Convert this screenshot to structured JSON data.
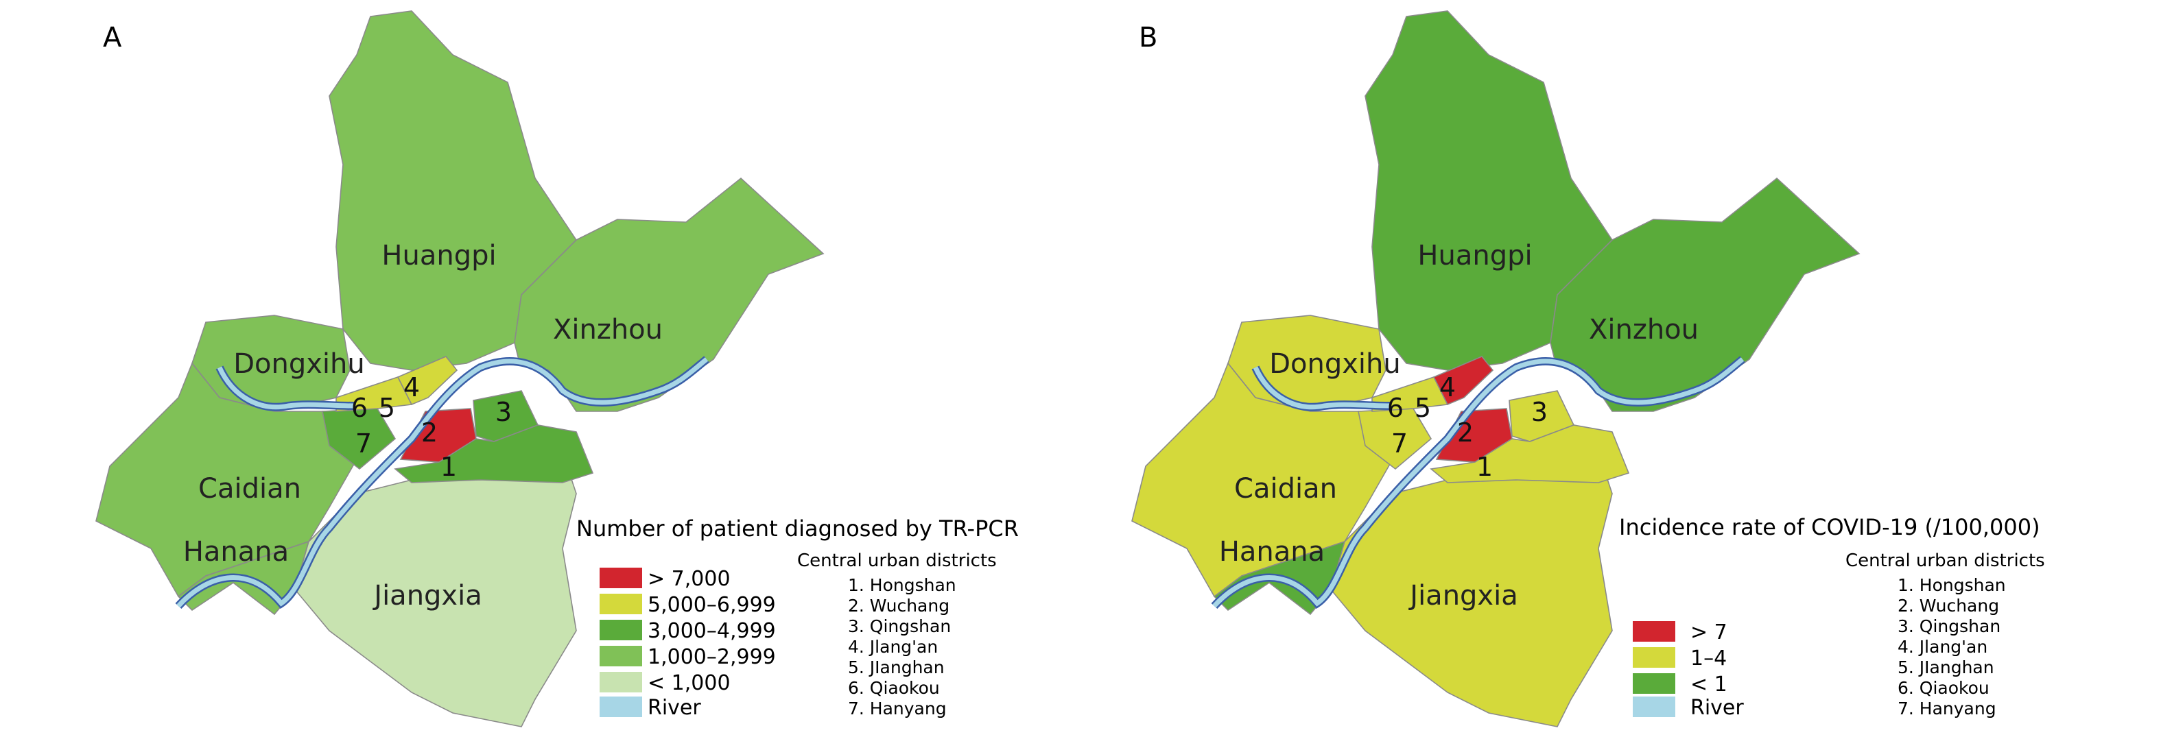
{
  "panels": [
    {
      "label": "A",
      "district_labels": [
        "Huangpi",
        "Xinzhou",
        "Dongxihu",
        "Caidian",
        "Hanana",
        "Jiangxia"
      ],
      "area_numbers": [
        "1",
        "2",
        "3",
        "4",
        "5",
        "6",
        "7"
      ],
      "legend": {
        "title": "Number of patient diagnosed by TR-PCR",
        "items": [
          {
            "label": "> 7,000",
            "color": "#d2252e"
          },
          {
            "label": "5,000–6,999",
            "color": "#d4d93b"
          },
          {
            "label": "3,000–4,999",
            "color": "#5aab3a"
          },
          {
            "label": "1,000–2,999",
            "color": "#80c157"
          },
          {
            "label": "< 1,000",
            "color": "#c8e3b0"
          },
          {
            "label": "River",
            "color": "#a7d6e6"
          }
        ]
      },
      "central": {
        "title": "Central urban districts",
        "items": [
          "1. Hongshan",
          "2. Wuchang",
          "3. Qingshan",
          "4. Jlang'an",
          "5. JIanghan",
          "6. Qiaokou",
          "7. Hanyang"
        ]
      }
    },
    {
      "label": "B",
      "district_labels": [
        "Huangpi",
        "Xinzhou",
        "Dongxihu",
        "Caidian",
        "Hanana",
        "Jiangxia"
      ],
      "area_numbers": [
        "1",
        "2",
        "3",
        "4",
        "5",
        "6",
        "7"
      ],
      "legend": {
        "title": "Incidence rate of COVID-19 (/100,000)",
        "items": [
          {
            "label": "> 7",
            "color": "#d2252e"
          },
          {
            "label": "1–4",
            "color": "#d4d93b"
          },
          {
            "label": "< 1",
            "color": "#5aab3a"
          },
          {
            "label": "River",
            "color": "#a7d6e6"
          }
        ]
      },
      "central": {
        "title": "Central urban districts",
        "items": [
          "1. Hongshan",
          "2. Wuchang",
          "3. Qingshan",
          "4. Jlang'an",
          "5. JIanghan",
          "6. Qiaokou",
          "7. Hanyang"
        ]
      }
    }
  ]
}
